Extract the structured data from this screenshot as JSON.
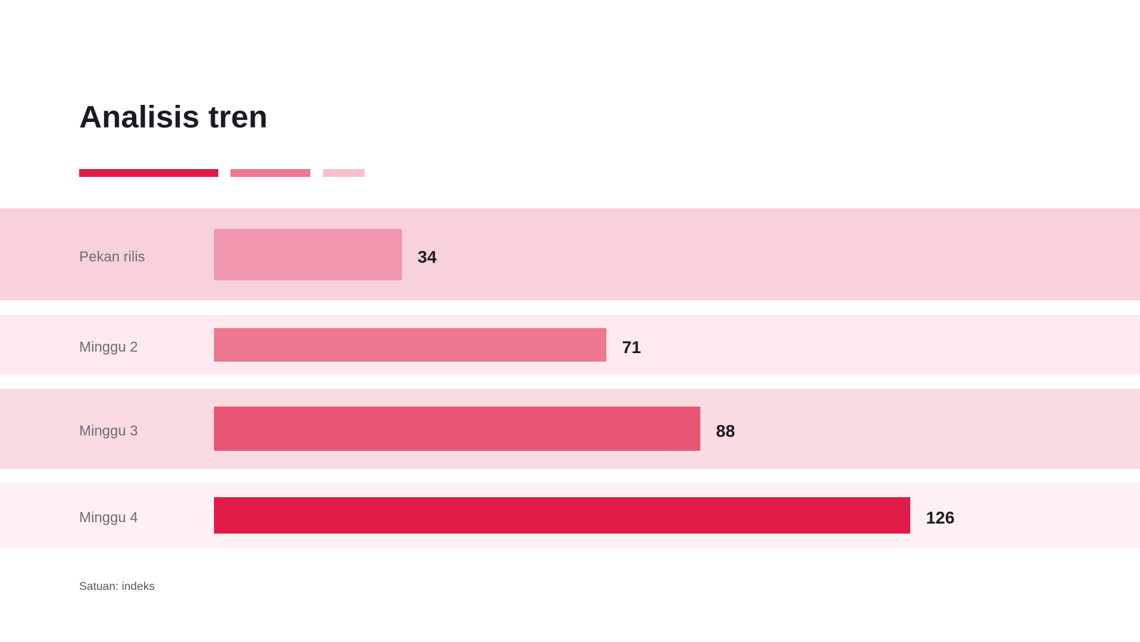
{
  "chart_data": {
    "type": "bar",
    "orientation": "horizontal",
    "title": "Analisis tren",
    "categories": [
      "Pekan rilis",
      "Minggu 2",
      "Minggu 3",
      "Minggu 4"
    ],
    "values": [
      34,
      71,
      88,
      126
    ],
    "colors": [
      "#f097ad",
      "#ed7890",
      "#e85574",
      "#e01b48"
    ],
    "footnote": "Satuan: indeks"
  }
}
